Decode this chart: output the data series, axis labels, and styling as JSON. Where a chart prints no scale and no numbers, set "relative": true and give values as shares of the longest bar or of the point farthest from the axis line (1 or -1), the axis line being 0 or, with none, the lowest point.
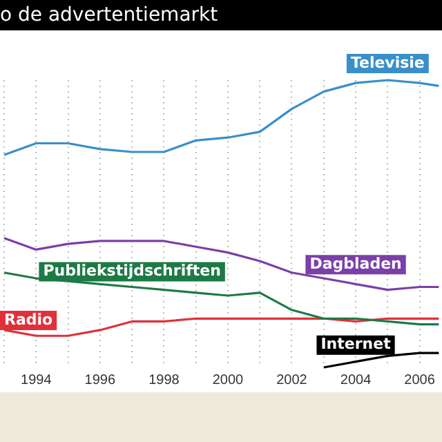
{
  "chart_data": {
    "type": "line",
    "title": "o de advertentiemarkt",
    "relative": true,
    "x": [
      1993,
      1994,
      1995,
      1996,
      1997,
      1998,
      1999,
      2000,
      2001,
      2002,
      2003,
      2004,
      2005,
      2006,
      2006.6
    ],
    "xlim": [
      1992.9,
      2006.7
    ],
    "xticks": [
      {
        "value": 1993,
        "label": null
      },
      1994,
      {
        "value": 1995,
        "label": null
      },
      1996,
      {
        "value": 1997,
        "label": null
      },
      1998,
      {
        "value": 1999,
        "label": null
      },
      2000,
      {
        "value": 2001,
        "label": null
      },
      2002,
      {
        "value": 2003,
        "label": null
      },
      2004,
      {
        "value": 2005,
        "label": null
      },
      2006
    ],
    "grid": "x",
    "legend": false,
    "marker": "none",
    "line_style": "solid",
    "series": [
      {
        "name": "Televisie",
        "color": "#3a8fc8",
        "values": [
          0.74,
          0.78,
          0.78,
          0.76,
          0.75,
          0.75,
          0.79,
          0.8,
          0.82,
          0.9,
          0.96,
          0.99,
          1,
          0.99,
          0.98
        ]
      },
      {
        "name": "Dagbladen",
        "color": "#7b3fa8",
        "values": [
          0.45,
          0.41,
          0.43,
          0.44,
          0.44,
          0.44,
          0.42,
          0.4,
          0.37,
          0.33,
          0.31,
          0.29,
          0.27,
          0.28,
          0.28
        ]
      },
      {
        "name": "Publiekstijdschriften",
        "color": "#1e7a45",
        "values": [
          0.33,
          0.31,
          0.3,
          0.29,
          0.28,
          0.27,
          0.26,
          0.25,
          0.26,
          0.2,
          0.17,
          0.17,
          0.16,
          0.15,
          0.15
        ]
      },
      {
        "name": "Radio",
        "color": "#e0303a",
        "values": [
          0.13,
          0.11,
          0.11,
          0.13,
          0.16,
          0.16,
          0.17,
          0.17,
          0.17,
          0.17,
          0.17,
          0.16,
          0.17,
          0.17,
          0.17
        ]
      },
      {
        "name": "Internet",
        "color": "#000000",
        "values": [
          null,
          null,
          null,
          null,
          null,
          null,
          null,
          null,
          null,
          null,
          0,
          0.02,
          0.04,
          0.05,
          0.05
        ]
      }
    ]
  }
}
